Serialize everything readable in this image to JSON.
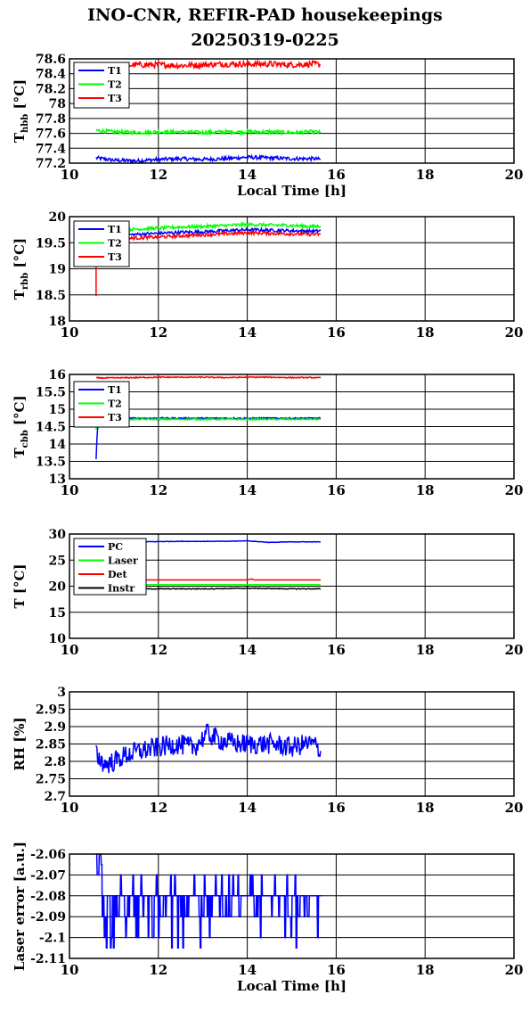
{
  "header": {
    "title_line1": "INO-CNR, REFIR-PAD housekeepings",
    "title_line2": "20250319-0225"
  },
  "chart_data": [
    {
      "type": "line",
      "ylabel": "T_hbb [°C]",
      "ylabel_main": "T",
      "ylabel_sub": "hbb",
      "ylabel_unit": " [°C]",
      "xlabel": "Local Time [h]",
      "xlim": [
        10,
        20
      ],
      "ylim": [
        77.2,
        78.6
      ],
      "xticks": [
        "10",
        "12",
        "14",
        "16",
        "18",
        "20"
      ],
      "yticks": [
        "77.2",
        "77.4",
        "77.6",
        "77.8",
        "78",
        "78.2",
        "78.4",
        "78.6"
      ],
      "legend": "top-left",
      "grid": true,
      "series": [
        {
          "name": "T1",
          "color": "#0000ff",
          "x": [
            10.6,
            11.0,
            11.5,
            12.0,
            12.5,
            13.0,
            13.5,
            14.0,
            14.5,
            15.0,
            15.5,
            15.65
          ],
          "y": [
            77.27,
            77.24,
            77.23,
            77.25,
            77.26,
            77.25,
            77.26,
            77.28,
            77.27,
            77.26,
            77.26,
            77.25
          ],
          "noise": 0.025
        },
        {
          "name": "T2",
          "color": "#00ff00",
          "x": [
            10.6,
            11.0,
            11.5,
            12.0,
            12.5,
            13.0,
            13.5,
            14.0,
            14.5,
            15.0,
            15.5,
            15.65
          ],
          "y": [
            77.64,
            77.62,
            77.61,
            77.62,
            77.62,
            77.61,
            77.62,
            77.62,
            77.62,
            77.61,
            77.62,
            77.61
          ],
          "noise": 0.025
        },
        {
          "name": "T3",
          "color": "#ff0000",
          "x": [
            10.6,
            11.0,
            11.5,
            12.0,
            12.5,
            13.0,
            13.5,
            14.0,
            14.5,
            15.0,
            15.5,
            15.65
          ],
          "y": [
            78.47,
            78.5,
            78.52,
            78.52,
            78.51,
            78.52,
            78.53,
            78.53,
            78.53,
            78.52,
            78.53,
            78.52
          ],
          "noise": 0.04
        }
      ]
    },
    {
      "type": "line",
      "ylabel": "T_rbb [°C]",
      "ylabel_main": "T",
      "ylabel_sub": "rbb",
      "ylabel_unit": " [°C]",
      "xlabel": "",
      "xlim": [
        10,
        20
      ],
      "ylim": [
        18,
        20
      ],
      "xticks": [
        "10",
        "12",
        "14",
        "16",
        "18",
        "20"
      ],
      "yticks": [
        "18",
        "18.5",
        "19",
        "19.5",
        "20"
      ],
      "legend": "top-left",
      "grid": true,
      "series": [
        {
          "name": "T1",
          "color": "#0000ff",
          "x": [
            10.6,
            11.0,
            11.5,
            12.0,
            12.5,
            13.0,
            13.5,
            14.0,
            14.5,
            15.0,
            15.5,
            15.65
          ],
          "y": [
            19.62,
            19.64,
            19.66,
            19.68,
            19.7,
            19.71,
            19.73,
            19.75,
            19.74,
            19.73,
            19.72,
            19.73
          ],
          "noise": 0.03
        },
        {
          "name": "T2",
          "color": "#00ff00",
          "x": [
            10.6,
            11.0,
            11.5,
            12.0,
            12.5,
            13.0,
            13.5,
            14.0,
            14.5,
            15.0,
            15.5,
            15.65
          ],
          "y": [
            19.72,
            19.74,
            19.76,
            19.78,
            19.8,
            19.81,
            19.83,
            19.85,
            19.84,
            19.83,
            19.81,
            19.82
          ],
          "noise": 0.03
        },
        {
          "name": "T3",
          "color": "#ff0000",
          "x": [
            10.6,
            10.6,
            11.0,
            11.5,
            12.0,
            12.5,
            13.0,
            13.5,
            14.0,
            14.5,
            15.0,
            15.5,
            15.65
          ],
          "y": [
            18.5,
            19.55,
            19.57,
            19.59,
            19.61,
            19.63,
            19.65,
            19.67,
            19.69,
            19.68,
            19.67,
            19.66,
            19.66
          ],
          "noise": 0.03
        }
      ]
    },
    {
      "type": "line",
      "ylabel": "T_cbb [°C]",
      "ylabel_main": "T",
      "ylabel_sub": "cbb",
      "ylabel_unit": " [°C]",
      "xlabel": "",
      "xlim": [
        10,
        20
      ],
      "ylim": [
        13,
        16
      ],
      "xticks": [
        "10",
        "12",
        "14",
        "16",
        "18",
        "20"
      ],
      "yticks": [
        "13",
        "13.5",
        "14",
        "14.5",
        "15",
        "15.5",
        "16"
      ],
      "legend": "top-left",
      "grid": true,
      "series": [
        {
          "name": "T1",
          "color": "#0000ff",
          "x": [
            10.6,
            10.62,
            10.65,
            11.0,
            11.5,
            12.0,
            12.5,
            13.0,
            13.5,
            14.0,
            14.5,
            15.0,
            15.5,
            15.65
          ],
          "y": [
            13.55,
            14.2,
            14.72,
            14.74,
            14.74,
            14.74,
            14.74,
            14.74,
            14.74,
            14.74,
            14.74,
            14.74,
            14.74,
            14.74
          ],
          "noise": 0.02
        },
        {
          "name": "T2",
          "color": "#00ff00",
          "x": [
            10.6,
            10.62,
            10.65,
            11.0,
            11.5,
            12.0,
            12.5,
            13.0,
            13.5,
            14.0,
            14.5,
            15.0,
            15.5,
            15.65
          ],
          "y": [
            14.4,
            14.6,
            14.7,
            14.71,
            14.71,
            14.71,
            14.71,
            14.71,
            14.71,
            14.71,
            14.71,
            14.71,
            14.71,
            14.71
          ],
          "noise": 0.02
        },
        {
          "name": "T3",
          "color": "#ff0000",
          "x": [
            10.6,
            11.0,
            11.5,
            12.0,
            12.5,
            13.0,
            13.5,
            14.0,
            14.5,
            15.0,
            15.5,
            15.65
          ],
          "y": [
            15.9,
            15.9,
            15.91,
            15.92,
            15.92,
            15.92,
            15.91,
            15.92,
            15.92,
            15.91,
            15.91,
            15.9
          ],
          "noise": 0.015
        }
      ]
    },
    {
      "type": "line",
      "ylabel": "T [°C]",
      "ylabel_main": "T [°C]",
      "ylabel_sub": "",
      "ylabel_unit": "",
      "xlabel": "",
      "xlim": [
        10,
        20
      ],
      "ylim": [
        10,
        30
      ],
      "xticks": [
        "10",
        "12",
        "14",
        "16",
        "18",
        "20"
      ],
      "yticks": [
        "10",
        "15",
        "20",
        "25",
        "30"
      ],
      "legend": "top-left",
      "grid": true,
      "series": [
        {
          "name": "PC",
          "color": "#0000ff",
          "x": [
            10.6,
            11.5,
            12.5,
            13.5,
            14.0,
            14.5,
            15.0,
            15.65
          ],
          "y": [
            28.5,
            28.5,
            28.6,
            28.6,
            28.7,
            28.4,
            28.5,
            28.5
          ],
          "noise": 0.05
        },
        {
          "name": "Laser",
          "color": "#00ff00",
          "x": [
            10.6,
            12.0,
            14.0,
            15.65
          ],
          "y": [
            20.3,
            20.3,
            20.3,
            20.3
          ],
          "noise": 0
        },
        {
          "name": "Det",
          "color": "#ff0000",
          "x": [
            10.6,
            12.0,
            14.0,
            14.1,
            14.15,
            15.65
          ],
          "y": [
            21.2,
            21.2,
            21.2,
            21.4,
            21.2,
            21.2
          ],
          "noise": 0
        },
        {
          "name": "Instr",
          "color": "#000000",
          "x": [
            10.6,
            12.0,
            13.0,
            14.0,
            15.0,
            15.65
          ],
          "y": [
            19.4,
            19.5,
            19.5,
            19.6,
            19.5,
            19.5
          ],
          "noise": 0.08
        }
      ]
    },
    {
      "type": "line",
      "ylabel": "RH [%]",
      "ylabel_main": "RH [%]",
      "ylabel_sub": "",
      "ylabel_unit": "",
      "xlabel": "",
      "xlim": [
        10,
        20
      ],
      "ylim": [
        2.7,
        3
      ],
      "xticks": [
        "10",
        "12",
        "14",
        "16",
        "18",
        "20"
      ],
      "yticks": [
        "2.7",
        "2.75",
        "2.8",
        "2.85",
        "2.9",
        "2.95",
        "3"
      ],
      "legend": "none",
      "grid": true,
      "series": [
        {
          "name": "",
          "color": "#0000ff",
          "x": [
            10.6,
            10.8,
            11.0,
            11.3,
            11.6,
            12.0,
            12.4,
            12.8,
            13.1,
            13.4,
            13.8,
            14.2,
            14.6,
            15.0,
            15.3,
            15.5,
            15.65
          ],
          "y": [
            2.82,
            2.79,
            2.8,
            2.82,
            2.83,
            2.84,
            2.85,
            2.84,
            2.88,
            2.86,
            2.85,
            2.85,
            2.85,
            2.84,
            2.85,
            2.85,
            2.83
          ],
          "noise": 0.03
        }
      ]
    },
    {
      "type": "line",
      "ylabel": "Laser error [a.u.]",
      "ylabel_main": "Laser error [a.u.]",
      "ylabel_sub": "",
      "ylabel_unit": "",
      "xlabel": "Local Time [h]",
      "xlim": [
        10,
        20
      ],
      "ylim": [
        -2.11,
        -2.06
      ],
      "xticks": [
        "10",
        "12",
        "14",
        "16",
        "18",
        "20"
      ],
      "yticks": [
        "-2.11",
        "-2.1",
        "-2.09",
        "-2.08",
        "-2.07",
        "-2.06"
      ],
      "legend": "none",
      "grid": true,
      "series": [
        {
          "name": "",
          "color": "#0000ff",
          "x": [
            10.6,
            15.65
          ],
          "y": [
            -2.06,
            -2.09
          ],
          "levels": [
            -2.06,
            -2.065,
            -2.07,
            -2.075,
            -2.08,
            -2.085,
            -2.09,
            -2.095,
            -2.1,
            -2.105
          ],
          "noise": 0
        }
      ]
    }
  ]
}
